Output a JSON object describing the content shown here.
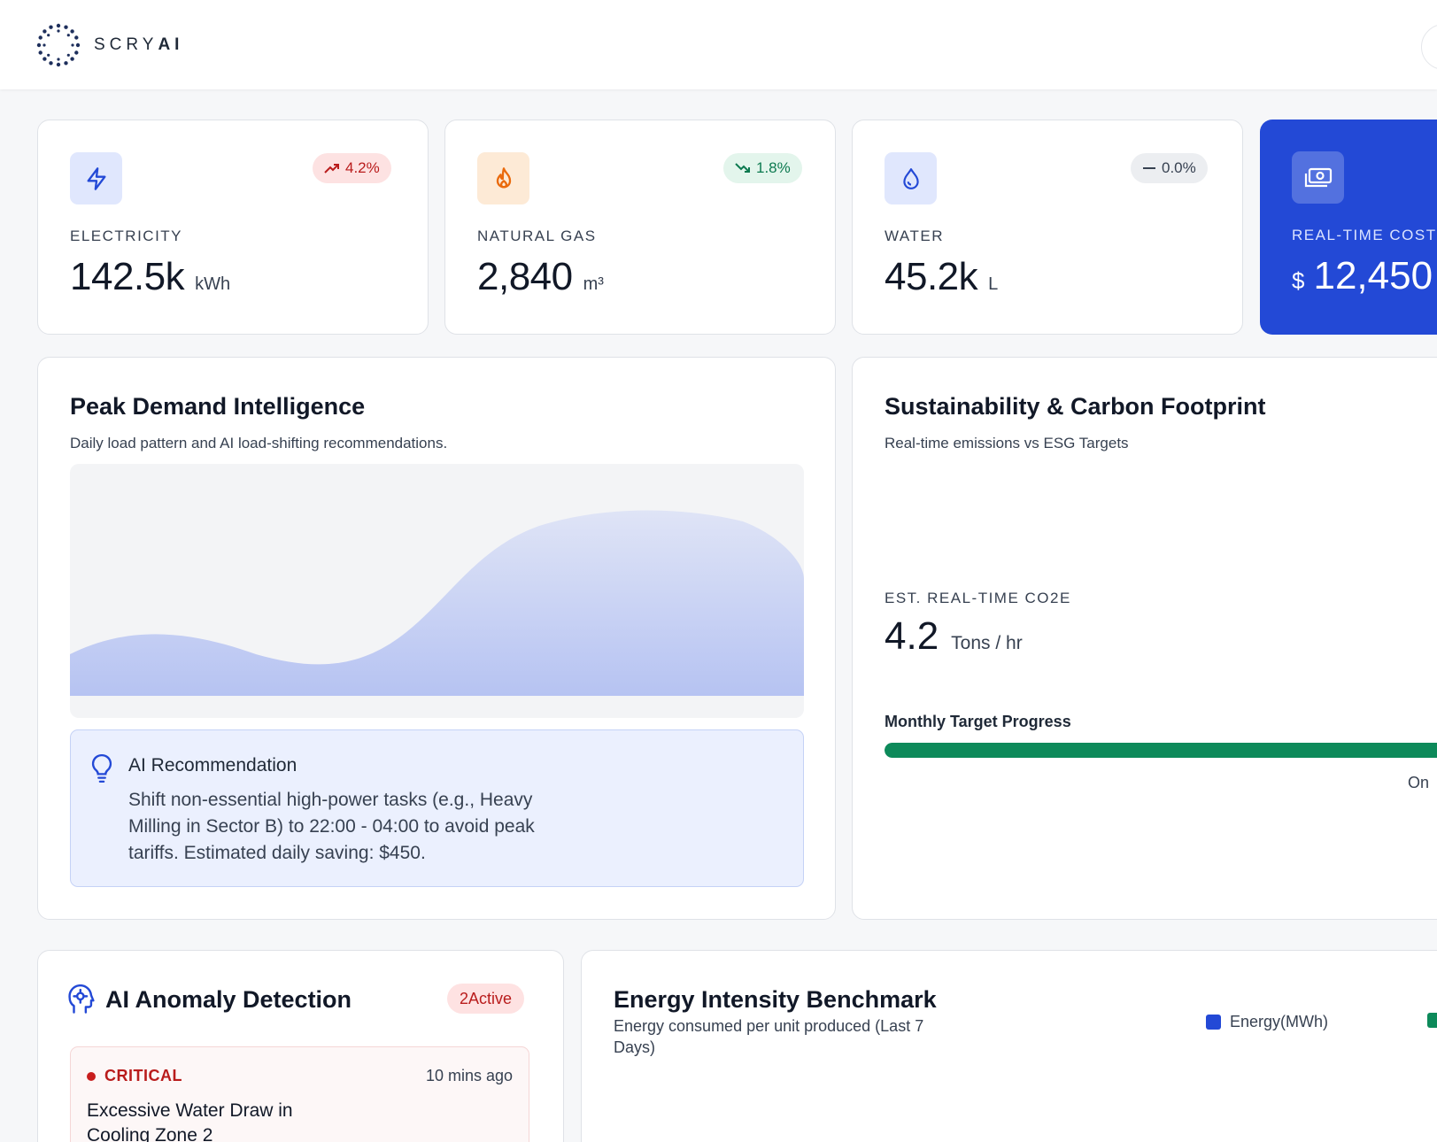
{
  "header": {
    "brand_a": "SCRY",
    "brand_b": "AI"
  },
  "kpis": [
    {
      "label": "ELECTRICITY",
      "value": "142.5k",
      "unit": "kWh",
      "trend": "4.2%",
      "trend_dir": "up",
      "icon": "lightning-icon",
      "accent": "#2349d6"
    },
    {
      "label": "NATURAL GAS",
      "value": "2,840",
      "unit": "m³",
      "trend": "1.8%",
      "trend_dir": "down",
      "icon": "flame-icon",
      "accent": "#ea6a0c"
    },
    {
      "label": "WATER",
      "value": "45.2k",
      "unit": "L",
      "trend": "0.0%",
      "trend_dir": "flat",
      "icon": "droplet-icon",
      "accent": "#2349d6"
    }
  ],
  "cost": {
    "label": "REAL-TIME COST",
    "currency": "$",
    "value": "12,450",
    "icon": "cash-icon",
    "accent": "#2349d6"
  },
  "peak": {
    "title": "Peak Demand Intelligence",
    "subtitle": "Daily load pattern and AI load-shifting recommendations.",
    "recommendation": {
      "title": "AI Recommendation",
      "text": "Shift non-essential high-power tasks (e.g., Heavy Milling in Sector B) to 22:00 - 04:00 to avoid peak tariffs. Estimated daily saving: $450."
    }
  },
  "sustainability": {
    "title": "Sustainability & Carbon Footprint",
    "subtitle": "Real-time emissions vs ESG Targets",
    "co2_label": "EST. REAL-TIME CO2E",
    "co2_value": "4.2",
    "co2_unit": "Tons / hr",
    "target_label": "Monthly Target Progress",
    "target_status": "On",
    "target_color": "#0d8a5a"
  },
  "anomaly": {
    "title": "AI Anomaly Detection",
    "badge": "2Active",
    "items": [
      {
        "severity": "CRITICAL",
        "time": "10 mins ago",
        "description": "Excessive Water Draw in Cooling Zone 2"
      }
    ]
  },
  "benchmark": {
    "title": "Energy Intensity Benchmark",
    "subtitle": "Energy consumed per unit produced (Last 7 Days)",
    "legend": [
      {
        "name": "Energy(MWh)",
        "color": "#2349d6"
      },
      {
        "name": "",
        "color": "#0d8a5a"
      }
    ]
  }
}
